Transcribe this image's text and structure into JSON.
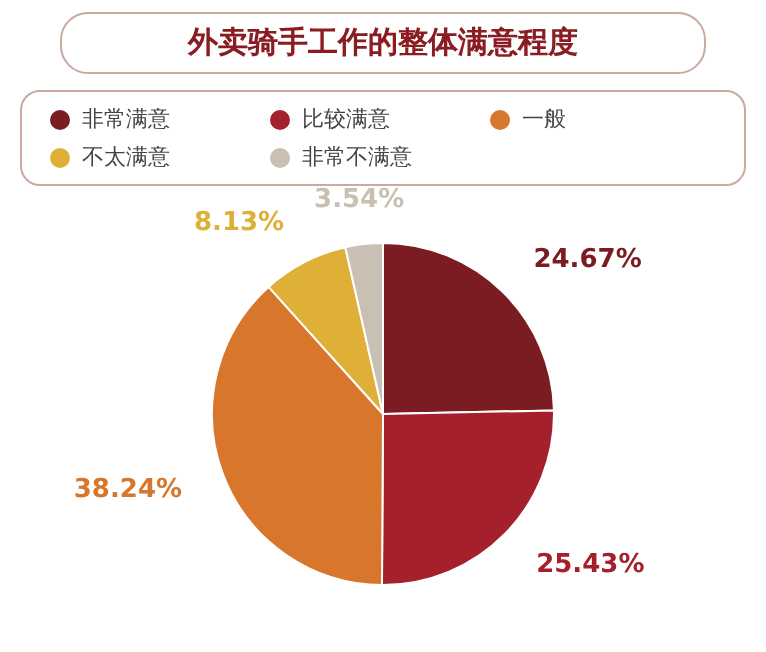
{
  "chart_data": {
    "type": "pie",
    "title": "外卖骑手工作的整体满意程度",
    "categories": [
      "非常满意",
      "比较满意",
      "一般",
      "不太满意",
      "非常不满意"
    ],
    "values": [
      24.67,
      25.43,
      38.24,
      8.13,
      3.54
    ],
    "value_labels": [
      "24.67%",
      "25.43%",
      "38.24%",
      "8.13%",
      "3.54%"
    ],
    "colors": [
      "#7b1c22",
      "#a3202c",
      "#d8772c",
      "#deb037",
      "#c9c0b3"
    ],
    "legend": "top"
  }
}
